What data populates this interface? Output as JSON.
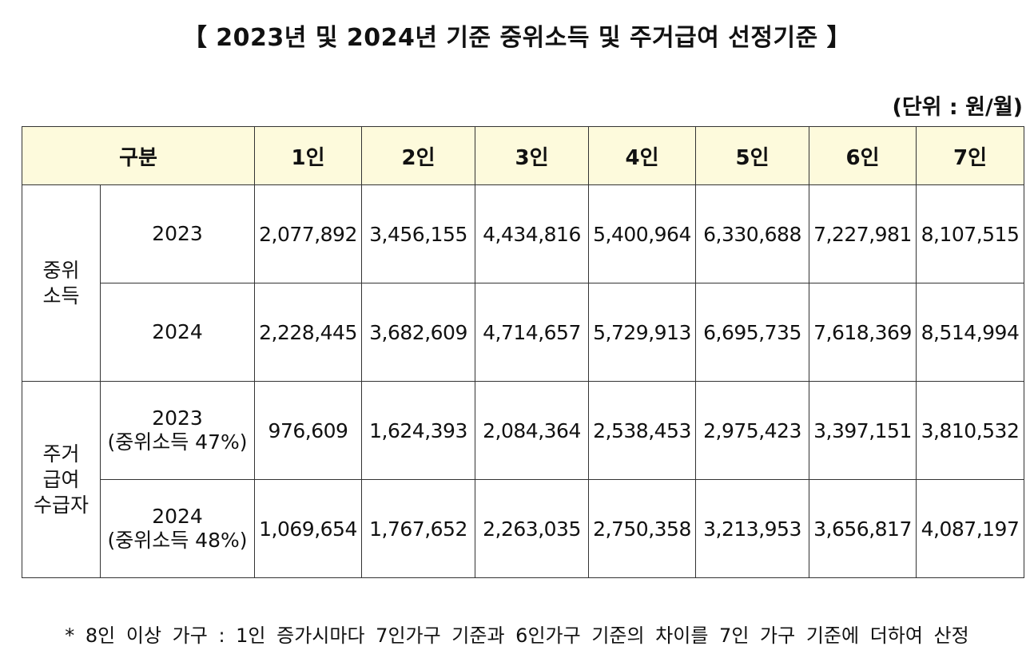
{
  "title": "【 2023년 및 2024년 기준 중위소득 및 주거급여 선정기준 】",
  "unit_note": "(단위 : 원/월)",
  "table": {
    "header_label": "구분",
    "columns": [
      "1인",
      "2인",
      "3인",
      "4인",
      "5인",
      "6인",
      "7인"
    ],
    "median_income": {
      "label_line1": "중위",
      "label_line2": "소득",
      "rows": [
        {
          "year": "2023",
          "values": [
            "2,077,892",
            "3,456,155",
            "4,434,816",
            "5,400,964",
            "6,330,688",
            "7,227,981",
            "8,107,515"
          ]
        },
        {
          "year": "2024",
          "values": [
            "2,228,445",
            "3,682,609",
            "4,714,657",
            "5,729,913",
            "6,695,735",
            "7,618,369",
            "8,514,994"
          ]
        }
      ]
    },
    "housing_benefit": {
      "label_line1": "주거",
      "label_line2": "급여",
      "label_line3": "수급자",
      "rows": [
        {
          "year": "2023",
          "note": "(중위소득 47%)",
          "values": [
            "976,609",
            "1,624,393",
            "2,084,364",
            "2,538,453",
            "2,975,423",
            "3,397,151",
            "3,810,532"
          ]
        },
        {
          "year": "2024",
          "note": "(중위소득 48%)",
          "values": [
            "1,069,654",
            "1,767,652",
            "2,263,035",
            "2,750,358",
            "3,213,953",
            "3,656,817",
            "4,087,197"
          ]
        }
      ]
    }
  },
  "footnote": "* 8인 이상 가구 : 1인 증가시마다 7인가구 기준과 6인가구 기준의 차이를 7인 가구 기준에 더하여 산정"
}
